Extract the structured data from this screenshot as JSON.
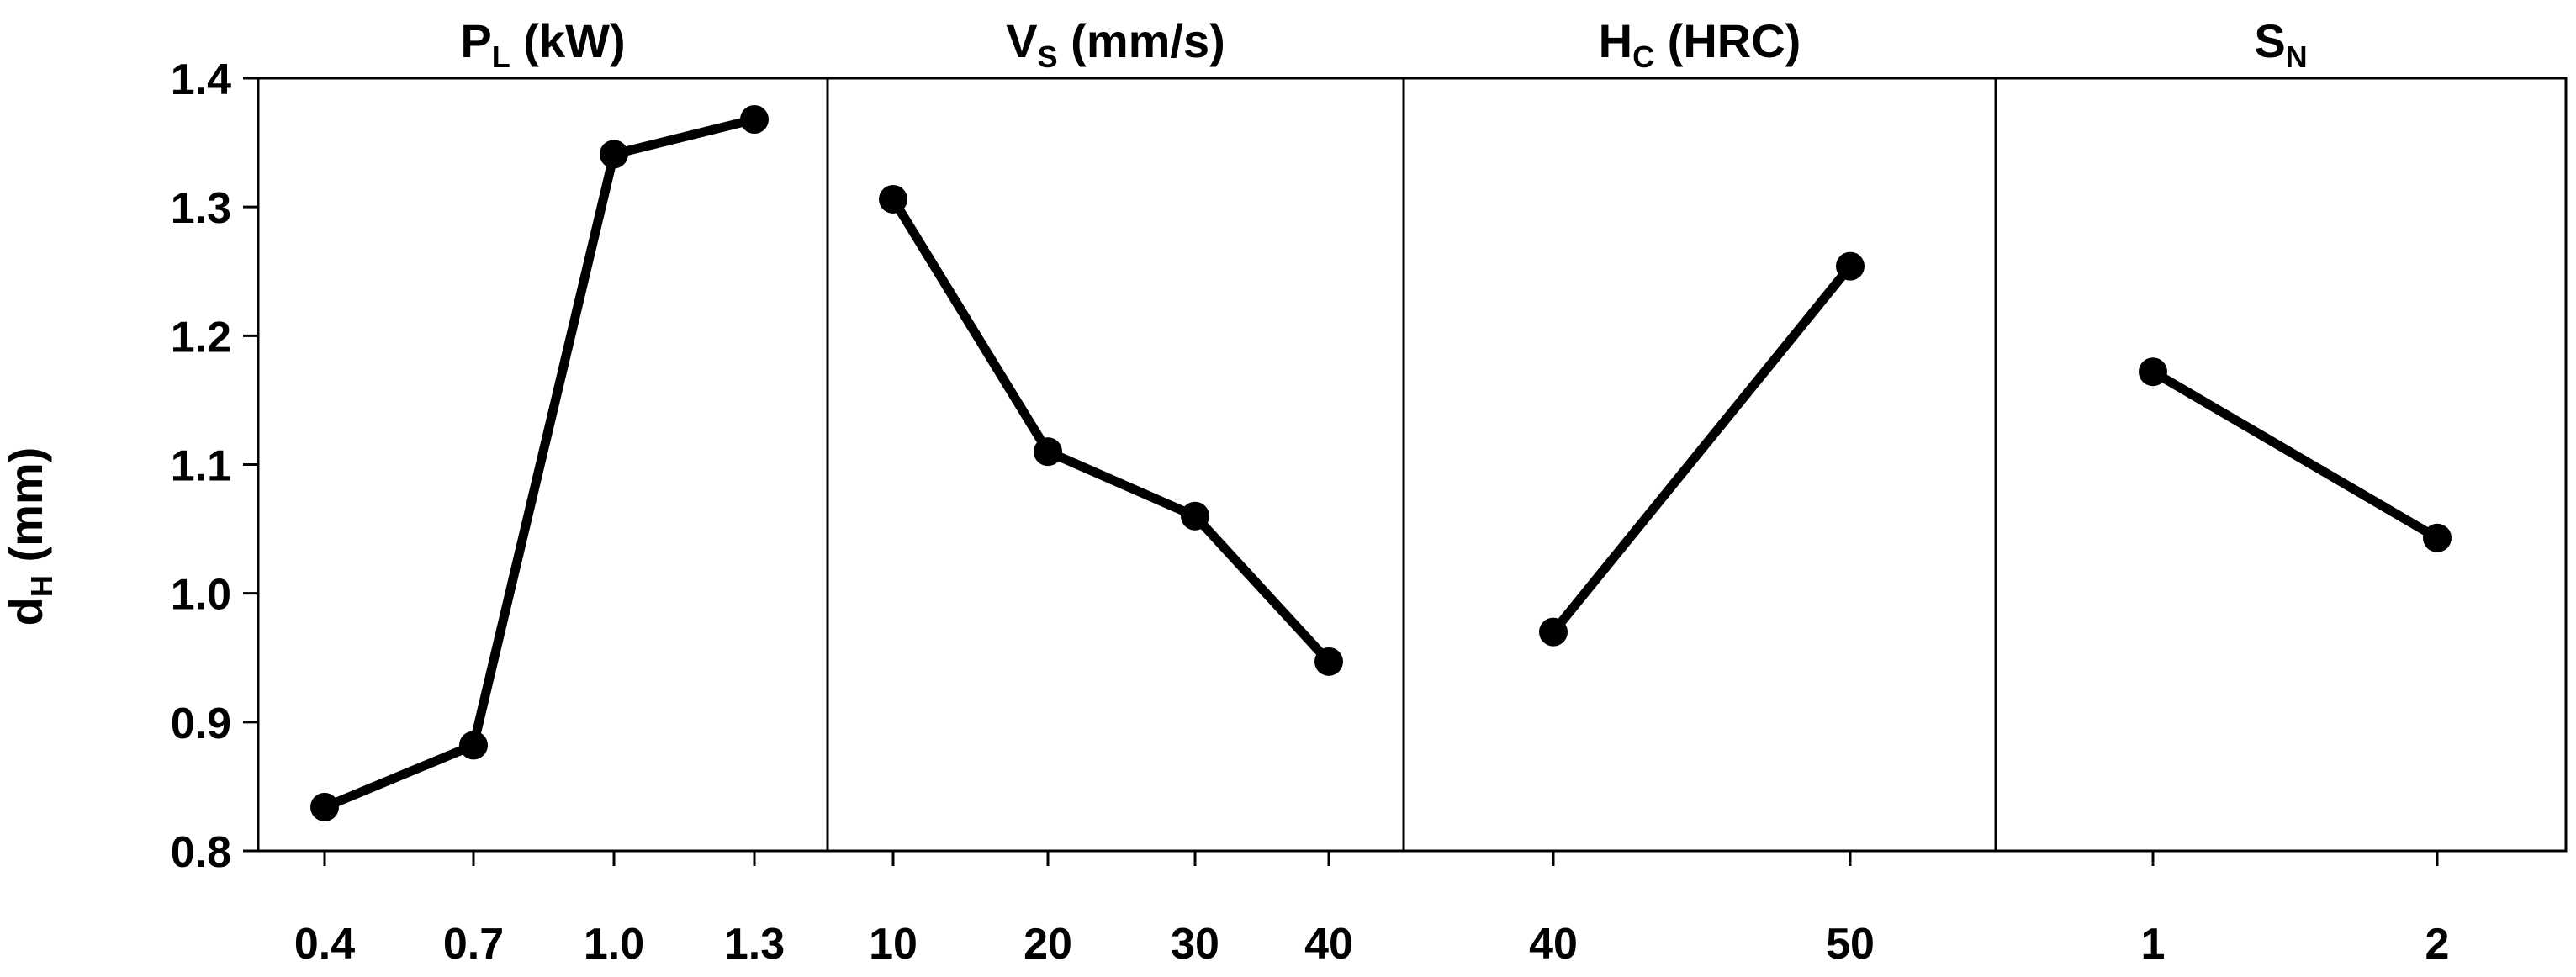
{
  "chart_data": {
    "type": "line",
    "ylabel": {
      "main": "d",
      "sub": "H",
      "tail": " (mm)"
    },
    "ylim": [
      0.8,
      1.4
    ],
    "yticks": [
      0.8,
      0.9,
      1.0,
      1.1,
      1.2,
      1.3,
      1.4
    ],
    "ytick_labels": [
      "0.8",
      "0.9",
      "1.0",
      "1.1",
      "1.2",
      "1.3",
      "1.4"
    ],
    "grid": false,
    "panels": [
      {
        "title": {
          "main": "P",
          "sub": "L",
          "tail": " (kW)"
        },
        "categories": [
          "0.4",
          "0.7",
          "1.0",
          "1.3"
        ],
        "values": [
          0.834,
          0.882,
          1.341,
          1.368
        ]
      },
      {
        "title": {
          "main": "V",
          "sub": "S",
          "tail": " (mm/s)"
        },
        "categories": [
          "10",
          "20",
          "30",
          "40"
        ],
        "values": [
          1.306,
          1.11,
          1.06,
          0.947
        ]
      },
      {
        "title": {
          "main": "H",
          "sub": "C",
          "tail": " (HRC)"
        },
        "categories": [
          "40",
          "50"
        ],
        "values": [
          0.97,
          1.254
        ]
      },
      {
        "title": {
          "main": "S",
          "sub": "N",
          "tail": ""
        },
        "categories": [
          "1",
          "2"
        ],
        "values": [
          1.172,
          1.043
        ]
      }
    ]
  }
}
